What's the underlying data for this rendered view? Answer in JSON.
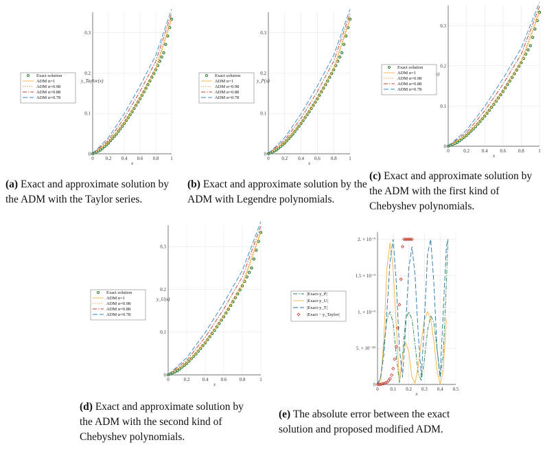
{
  "chart_data": [
    {
      "type": "line",
      "id": "a",
      "ylabel": "y_Taylor(x)",
      "xlabel": "x",
      "xlim": [
        0,
        1
      ],
      "ylim": [
        0,
        0.35
      ],
      "xticks": [
        "0",
        "0.2",
        "0.4",
        "0.6",
        "0.8",
        "1"
      ],
      "yticks": [
        "0",
        "0.1",
        "0.2",
        "0.3"
      ],
      "grid": true,
      "legend_position": "left",
      "series": [
        {
          "name": "Exact solution",
          "color": "#2e7d32",
          "style": "circles",
          "x": [
            0,
            0.1,
            0.2,
            0.3,
            0.4,
            0.5,
            0.6,
            0.7,
            0.8,
            0.9,
            1
          ],
          "y": [
            0,
            0.0095,
            0.0267,
            0.0488,
            0.0748,
            0.104,
            0.136,
            0.171,
            0.208,
            0.25,
            0.333
          ]
        },
        {
          "name": "ADM α=1",
          "color": "#f5b041",
          "style": "solid",
          "x": [
            0,
            0.2,
            0.4,
            0.6,
            0.8,
            1
          ],
          "y": [
            0,
            0.027,
            0.075,
            0.136,
            0.208,
            0.333
          ]
        },
        {
          "name": "ADM α=0.98",
          "color": "#e67e22",
          "style": "dotted",
          "x": [
            0,
            0.2,
            0.4,
            0.6,
            0.8,
            1
          ],
          "y": [
            0,
            0.029,
            0.079,
            0.141,
            0.214,
            0.338
          ]
        },
        {
          "name": "ADM α=0.88",
          "color": "#c0392b",
          "style": "dashdot",
          "x": [
            0,
            0.2,
            0.4,
            0.6,
            0.8,
            1
          ],
          "y": [
            0,
            0.034,
            0.088,
            0.154,
            0.229,
            0.348
          ]
        },
        {
          "name": "ADM α=0.78",
          "color": "#2e86c1",
          "style": "longdash",
          "x": [
            0,
            0.2,
            0.4,
            0.6,
            0.8,
            1
          ],
          "y": [
            0,
            0.04,
            0.099,
            0.168,
            0.244,
            0.358
          ]
        }
      ]
    },
    {
      "type": "line",
      "id": "b",
      "ylabel": "y_P(x)",
      "xlabel": "x",
      "xlim": [
        0,
        1
      ],
      "ylim": [
        0,
        0.35
      ],
      "xticks": [
        "0",
        "0.2",
        "0.4",
        "0.6",
        "0.8",
        "1"
      ],
      "yticks": [
        "0",
        "0.1",
        "0.2",
        "0.3"
      ],
      "grid": true,
      "legend_position": "left",
      "series": [
        {
          "name": "Exact solution",
          "color": "#2e7d32",
          "style": "circles",
          "x": [
            0,
            0.1,
            0.2,
            0.3,
            0.4,
            0.5,
            0.6,
            0.7,
            0.8,
            0.9,
            1
          ],
          "y": [
            0,
            0.0095,
            0.0267,
            0.0488,
            0.0748,
            0.104,
            0.136,
            0.171,
            0.208,
            0.25,
            0.333
          ]
        },
        {
          "name": "ADM α=1",
          "color": "#f5b041",
          "style": "solid",
          "x": [
            0,
            0.2,
            0.4,
            0.6,
            0.8,
            1
          ],
          "y": [
            0,
            0.027,
            0.075,
            0.136,
            0.208,
            0.333
          ]
        },
        {
          "name": "ADM α=0.98",
          "color": "#e67e22",
          "style": "dotted",
          "x": [
            0,
            0.2,
            0.4,
            0.6,
            0.8,
            1
          ],
          "y": [
            0,
            0.029,
            0.079,
            0.141,
            0.214,
            0.338
          ]
        },
        {
          "name": "ADM α=0.88",
          "color": "#c0392b",
          "style": "dashdot",
          "x": [
            0,
            0.2,
            0.4,
            0.6,
            0.8,
            1
          ],
          "y": [
            0,
            0.034,
            0.088,
            0.154,
            0.229,
            0.348
          ]
        },
        {
          "name": "ADM α=0.78",
          "color": "#2e86c1",
          "style": "longdash",
          "x": [
            0,
            0.2,
            0.4,
            0.6,
            0.8,
            1
          ],
          "y": [
            0,
            0.04,
            0.099,
            0.168,
            0.244,
            0.358
          ]
        }
      ]
    },
    {
      "type": "line",
      "id": "c",
      "ylabel": "y_T(x)",
      "xlabel": "x",
      "xlim": [
        0,
        1
      ],
      "ylim": [
        0,
        0.35
      ],
      "xticks": [
        "0",
        "0.2",
        "0.4",
        "0.6",
        "0.8",
        "1"
      ],
      "yticks": [
        "0",
        "0.1",
        "0.2",
        "0.3"
      ],
      "grid": true,
      "legend_position": "left",
      "series": [
        {
          "name": "Exact solution",
          "color": "#2e7d32",
          "style": "circles",
          "x": [
            0,
            0.1,
            0.2,
            0.3,
            0.4,
            0.5,
            0.6,
            0.7,
            0.8,
            0.9,
            1
          ],
          "y": [
            0,
            0.0095,
            0.0267,
            0.0488,
            0.0748,
            0.104,
            0.136,
            0.171,
            0.208,
            0.25,
            0.333
          ]
        },
        {
          "name": "ADM α=1",
          "color": "#f5b041",
          "style": "solid",
          "x": [
            0,
            0.2,
            0.4,
            0.6,
            0.8,
            1
          ],
          "y": [
            0,
            0.027,
            0.075,
            0.136,
            0.208,
            0.333
          ]
        },
        {
          "name": "ADM α=0.98",
          "color": "#e67e22",
          "style": "dotted",
          "x": [
            0,
            0.2,
            0.4,
            0.6,
            0.8,
            1
          ],
          "y": [
            0,
            0.029,
            0.079,
            0.141,
            0.214,
            0.338
          ]
        },
        {
          "name": "ADM α=0.88",
          "color": "#c0392b",
          "style": "dashdot",
          "x": [
            0,
            0.2,
            0.4,
            0.6,
            0.8,
            1
          ],
          "y": [
            0,
            0.034,
            0.088,
            0.154,
            0.229,
            0.348
          ]
        },
        {
          "name": "ADM α=0.78",
          "color": "#2e86c1",
          "style": "longdash",
          "x": [
            0,
            0.2,
            0.4,
            0.6,
            0.8,
            1
          ],
          "y": [
            0,
            0.04,
            0.099,
            0.168,
            0.244,
            0.358
          ]
        }
      ]
    },
    {
      "type": "line",
      "id": "d",
      "ylabel": "y_U(x)",
      "xlabel": "x",
      "xlim": [
        0,
        1
      ],
      "ylim": [
        0,
        0.35
      ],
      "xticks": [
        "0",
        "0.2",
        "0.4",
        "0.6",
        "0.8",
        "1"
      ],
      "yticks": [
        "0",
        "0.1",
        "0.2",
        "0.3"
      ],
      "grid": true,
      "legend_position": "left",
      "series": [
        {
          "name": "Exact solution",
          "color": "#2e7d32",
          "style": "circles",
          "x": [
            0,
            0.1,
            0.2,
            0.3,
            0.4,
            0.5,
            0.6,
            0.7,
            0.8,
            0.9,
            1
          ],
          "y": [
            0,
            0.0095,
            0.0267,
            0.0488,
            0.0748,
            0.104,
            0.136,
            0.171,
            0.208,
            0.25,
            0.333
          ]
        },
        {
          "name": "ADM α=1",
          "color": "#f5b041",
          "style": "solid",
          "x": [
            0,
            0.2,
            0.4,
            0.6,
            0.8,
            1
          ],
          "y": [
            0,
            0.027,
            0.075,
            0.136,
            0.208,
            0.333
          ]
        },
        {
          "name": "ADM α=0.98",
          "color": "#e67e22",
          "style": "dotted",
          "x": [
            0,
            0.2,
            0.4,
            0.6,
            0.8,
            1
          ],
          "y": [
            0,
            0.029,
            0.079,
            0.141,
            0.214,
            0.338
          ]
        },
        {
          "name": "ADM α=0.88",
          "color": "#c0392b",
          "style": "dashdot",
          "x": [
            0,
            0.2,
            0.4,
            0.6,
            0.8,
            1
          ],
          "y": [
            0,
            0.034,
            0.088,
            0.154,
            0.229,
            0.348
          ]
        },
        {
          "name": "ADM α=0.78",
          "color": "#2e86c1",
          "style": "longdash",
          "x": [
            0,
            0.2,
            0.4,
            0.6,
            0.8,
            1
          ],
          "y": [
            0,
            0.04,
            0.099,
            0.168,
            0.244,
            0.358
          ]
        }
      ]
    },
    {
      "type": "line",
      "id": "e",
      "xlabel": "x",
      "ylabel": "",
      "xlim": [
        0,
        0.5
      ],
      "ylim": [
        0,
        2.1e-09
      ],
      "xticks": [
        "0",
        "0.1",
        "0.2",
        "0.3",
        "0.4",
        "0.5"
      ],
      "yticks": [
        "0",
        "5. × 10⁻¹⁰",
        "1. × 10⁻⁹",
        "1.5 × 10⁻⁹",
        "2. × 10⁻⁹"
      ],
      "grid": true,
      "legend_position": "left",
      "series": [
        {
          "name": "|Exact-y_P|",
          "color": "#1e8449",
          "style": "dashdot",
          "x": [
            0,
            0.02,
            0.04,
            0.06,
            0.08,
            0.1,
            0.12,
            0.14,
            0.16,
            0.18,
            0.2,
            0.22,
            0.24,
            0.26,
            0.28,
            0.3,
            0.32,
            0.34,
            0.36,
            0.38,
            0.4,
            0.42,
            0.44,
            0.45
          ],
          "y": [
            0,
            1e-10,
            5e-10,
            9e-10,
            1e-09,
            8.5e-10,
            4e-10,
            2e-11,
            4e-10,
            9e-10,
            1e-09,
            9e-10,
            5.5e-10,
            1.5e-10,
            5e-11,
            3.5e-10,
            7.5e-10,
            9.5e-10,
            8.5e-10,
            5e-10,
            1e-10,
            4e-10,
            1.4e-09,
            2e-09
          ]
        },
        {
          "name": "|Exact-y_U|",
          "color": "#f5b041",
          "style": "solid",
          "x": [
            0,
            0.02,
            0.04,
            0.06,
            0.08,
            0.1,
            0.12,
            0.14,
            0.16,
            0.18,
            0.2,
            0.22,
            0.24,
            0.26,
            0.28,
            0.3,
            0.32,
            0.34,
            0.36,
            0.38,
            0.4,
            0.42,
            0.44
          ],
          "y": [
            0,
            5e-11,
            6e-10,
            1.6e-09,
            1.95e-09,
            1.6e-09,
            8e-10,
            5e-11,
            4e-10,
            5.8e-10,
            4.5e-10,
            1e-10,
            2e-11,
            2.5e-10,
            6e-10,
            9e-10,
            1e-09,
            9e-10,
            6e-10,
            2e-10,
            0.0,
            2e-10,
            9e-10
          ]
        },
        {
          "name": "|Exact-y_T|",
          "color": "#2471a3",
          "style": "longdash",
          "x": [
            0,
            0.02,
            0.04,
            0.06,
            0.08,
            0.1,
            0.12,
            0.14,
            0.16,
            0.18,
            0.2,
            0.22,
            0.24,
            0.26,
            0.28,
            0.3,
            0.32,
            0.34,
            0.36,
            0.38,
            0.4,
            0.42,
            0.44,
            0.45
          ],
          "y": [
            0,
            1e-10,
            4e-10,
            1e-09,
            1.7e-09,
            2e-09,
            1.4e-09,
            5e-10,
            1e-10,
            8e-10,
            1.6e-09,
            1.9e-09,
            1.5e-09,
            7e-10,
            1e-10,
            9e-10,
            1.8e-09,
            2e-09,
            1.4e-09,
            5e-10,
            1e-10,
            1e-09,
            1.9e-09,
            2e-09
          ]
        },
        {
          "name": "|Exact − y_Taylor|",
          "color": "#c0392b",
          "style": "diamonds",
          "x": [
            0,
            0.01,
            0.02,
            0.03,
            0.04,
            0.05,
            0.06,
            0.07,
            0.08,
            0.09,
            0.1,
            0.11,
            0.12,
            0.13,
            0.14,
            0.15,
            0.16,
            0.17,
            0.18,
            0.19,
            0.2,
            0.21,
            0.22
          ],
          "y": [
            0,
            0,
            0,
            1e-11,
            1e-11,
            2e-11,
            3e-11,
            5e-11,
            8e-11,
            1.3e-10,
            2.2e-10,
            3.5e-10,
            5.2e-10,
            7.8e-10,
            1.1e-09,
            1.45e-09,
            1.9e-09,
            2e-09,
            2e-09,
            2e-09,
            2e-09,
            2e-09,
            2e-09
          ]
        }
      ]
    }
  ],
  "captions": {
    "a": {
      "label": "(a)",
      "text": "Exact and approximate solution by the ADM with the Taylor series."
    },
    "b": {
      "label": "(b)",
      "text": "Exact and approximate solution by the ADM with Legendre polynomials."
    },
    "c": {
      "label": "(c)",
      "text": "Exact and approximate solution by the ADM with the first kind of Chebyshev polynomials."
    },
    "d": {
      "label": "(d)",
      "text": "Exact and approximate solution by the ADM with the second kind of Chebyshev polynomials."
    },
    "e": {
      "label": "(e)",
      "text": "The absolute error between the exact solution and proposed modified ADM."
    }
  }
}
